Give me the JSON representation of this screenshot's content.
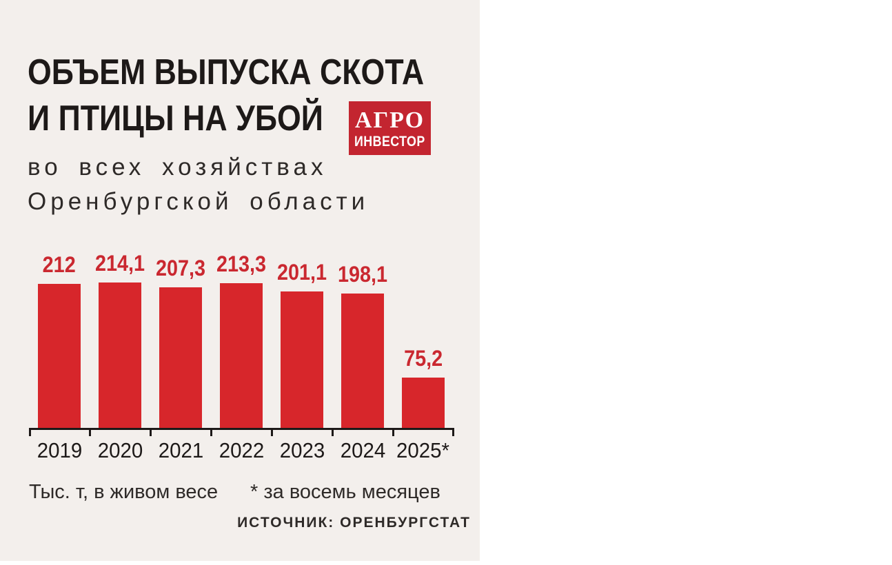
{
  "header": {
    "title_line1": "ОБЪЕМ ВЫПУСКА СКОТА",
    "title_line2": "И ПТИЦЫ НА УБОЙ",
    "subtitle_line1": "во всех хозяйствах",
    "subtitle_line2": "Оренбургской области",
    "logo_line1": "АГРО",
    "logo_line2": "ИНВЕСТОР"
  },
  "chart_data": {
    "type": "bar",
    "title": "Объем выпуска скота и птицы на убой во всех хозяйствах Оренбургской области",
    "categories": [
      "2019",
      "2020",
      "2021",
      "2022",
      "2023",
      "2024",
      "2025*"
    ],
    "values": [
      212,
      214.1,
      207.3,
      213.3,
      201.1,
      198.1,
      75.2
    ],
    "value_labels": [
      "212",
      "214,1",
      "207,3",
      "213,3",
      "201,1",
      "198,1",
      "75,2"
    ],
    "xlabel": "",
    "ylabel": "Тыс. т, в живом весе",
    "ylim": [
      0,
      220
    ],
    "grid": false,
    "legend": false,
    "bar_color": "#d7262b",
    "value_label_color": "#ca2830",
    "layout_hint": "single series, value labels above bars, x-axis line with ticks at category boundaries"
  },
  "footer": {
    "units": "Тыс. т, в живом весе",
    "note": "* за восемь месяцев",
    "source": "ИСТОЧНИК: ОРЕНБУРГСТАТ"
  },
  "colors": {
    "panel_background": "#f3efec",
    "bar_red": "#d7262b",
    "value_label_red": "#ca2830",
    "logo_red": "#c32530",
    "text_dark": "#1d1918",
    "text_soft": "#2e2a28"
  }
}
